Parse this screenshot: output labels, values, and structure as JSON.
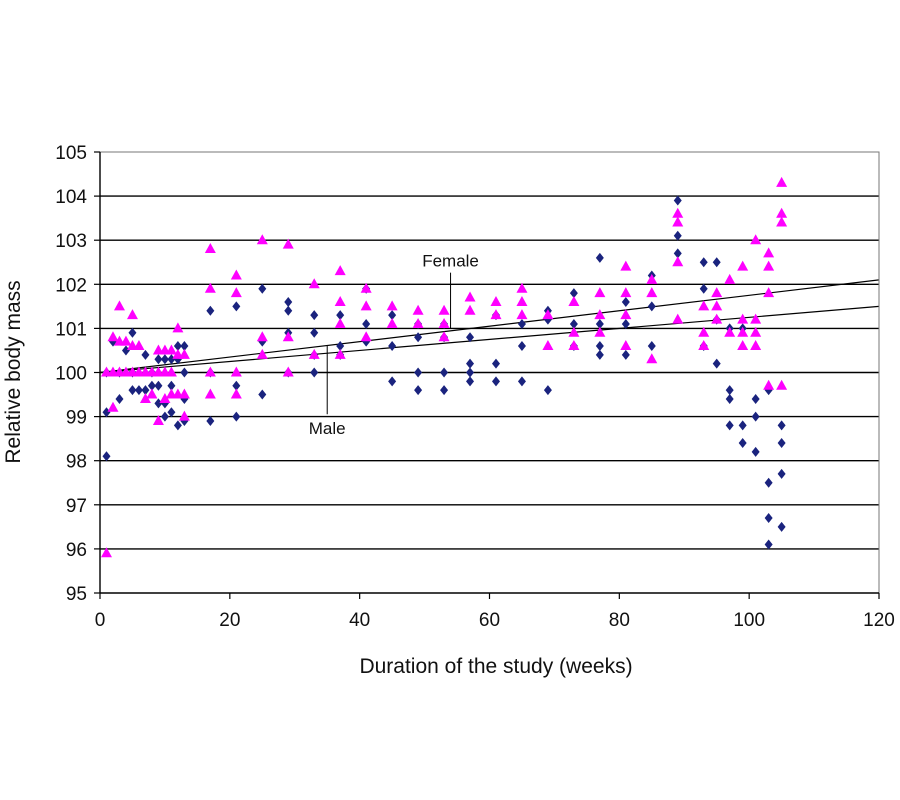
{
  "chart_data": {
    "type": "scatter",
    "xlabel": "Duration of the study (weeks)",
    "ylabel": "Relative body mass",
    "xlim": [
      0,
      120
    ],
    "ylim": [
      95,
      105
    ],
    "xticks": [
      0,
      20,
      40,
      60,
      80,
      100,
      120
    ],
    "yticks": [
      95,
      96,
      97,
      98,
      99,
      100,
      101,
      102,
      103,
      104,
      105
    ],
    "grid": "horizontal",
    "colors": {
      "male": "#1a237e",
      "female": "#ff00ff",
      "trend": "#000000"
    },
    "annotations": [
      {
        "text": "Female",
        "x": 54,
        "y": 102.4,
        "target_x": 54,
        "target_y": 101.0
      },
      {
        "text": "Male",
        "x": 35,
        "y": 98.6,
        "target_x": 35,
        "target_y": 100.6
      }
    ],
    "series": [
      {
        "marker": "diamond",
        "color": "#1a237e",
        "trend": {
          "x0": 0,
          "y0": 100.0,
          "x1": 120,
          "y1": 101.5
        },
        "points": [
          [
            1,
            98.1
          ],
          [
            1,
            99.1
          ],
          [
            1,
            100.0
          ],
          [
            2,
            100.7
          ],
          [
            3,
            99.4
          ],
          [
            3,
            100.0
          ],
          [
            4,
            100.5
          ],
          [
            5,
            99.6
          ],
          [
            5,
            100.9
          ],
          [
            5,
            100.0
          ],
          [
            6,
            99.6
          ],
          [
            7,
            99.6
          ],
          [
            7,
            100.4
          ],
          [
            8,
            99.7
          ],
          [
            8,
            100.0
          ],
          [
            9,
            99.3
          ],
          [
            9,
            99.7
          ],
          [
            9,
            100.3
          ],
          [
            10,
            99.3
          ],
          [
            10,
            99.0
          ],
          [
            10,
            100.3
          ],
          [
            11,
            99.1
          ],
          [
            11,
            99.7
          ],
          [
            11,
            100.3
          ],
          [
            12,
            98.8
          ],
          [
            12,
            100.3
          ],
          [
            12,
            100.6
          ],
          [
            13,
            98.9
          ],
          [
            13,
            99.4
          ],
          [
            13,
            100.0
          ],
          [
            13,
            100.6
          ],
          [
            17,
            98.9
          ],
          [
            17,
            100.0
          ],
          [
            17,
            101.4
          ],
          [
            21,
            99.0
          ],
          [
            21,
            99.7
          ],
          [
            21,
            101.5
          ],
          [
            25,
            99.5
          ],
          [
            25,
            100.7
          ],
          [
            25,
            101.9
          ],
          [
            29,
            100.0
          ],
          [
            29,
            100.9
          ],
          [
            29,
            101.4
          ],
          [
            29,
            101.6
          ],
          [
            33,
            100.0
          ],
          [
            33,
            100.4
          ],
          [
            33,
            100.9
          ],
          [
            33,
            101.3
          ],
          [
            37,
            100.4
          ],
          [
            37,
            100.6
          ],
          [
            37,
            101.3
          ],
          [
            41,
            100.7
          ],
          [
            41,
            101.1
          ],
          [
            41,
            101.9
          ],
          [
            45,
            99.8
          ],
          [
            45,
            100.6
          ],
          [
            45,
            101.3
          ],
          [
            49,
            99.6
          ],
          [
            49,
            100.0
          ],
          [
            49,
            100.8
          ],
          [
            49,
            101.1
          ],
          [
            53,
            99.6
          ],
          [
            53,
            100.0
          ],
          [
            53,
            100.8
          ],
          [
            53,
            101.1
          ],
          [
            57,
            99.8
          ],
          [
            57,
            100.0
          ],
          [
            57,
            100.2
          ],
          [
            57,
            100.8
          ],
          [
            61,
            99.8
          ],
          [
            61,
            100.2
          ],
          [
            61,
            101.3
          ],
          [
            65,
            99.8
          ],
          [
            65,
            100.6
          ],
          [
            65,
            101.1
          ],
          [
            69,
            99.6
          ],
          [
            69,
            101.2
          ],
          [
            69,
            101.4
          ],
          [
            73,
            100.6
          ],
          [
            73,
            101.1
          ],
          [
            73,
            101.8
          ],
          [
            77,
            100.4
          ],
          [
            77,
            100.6
          ],
          [
            77,
            101.1
          ],
          [
            77,
            102.6
          ],
          [
            81,
            100.4
          ],
          [
            81,
            101.1
          ],
          [
            81,
            101.6
          ],
          [
            85,
            100.6
          ],
          [
            85,
            101.5
          ],
          [
            85,
            102.2
          ],
          [
            89,
            102.7
          ],
          [
            89,
            103.1
          ],
          [
            89,
            103.9
          ],
          [
            93,
            100.6
          ],
          [
            93,
            101.9
          ],
          [
            93,
            102.5
          ],
          [
            95,
            100.2
          ],
          [
            95,
            101.2
          ],
          [
            95,
            102.5
          ],
          [
            97,
            98.8
          ],
          [
            97,
            99.4
          ],
          [
            97,
            99.6
          ],
          [
            97,
            101.0
          ],
          [
            99,
            98.4
          ],
          [
            99,
            98.8
          ],
          [
            99,
            101.0
          ],
          [
            101,
            98.2
          ],
          [
            101,
            99.0
          ],
          [
            101,
            99.4
          ],
          [
            103,
            96.1
          ],
          [
            103,
            96.7
          ],
          [
            103,
            97.5
          ],
          [
            103,
            99.6
          ],
          [
            105,
            96.5
          ],
          [
            105,
            97.7
          ],
          [
            105,
            98.4
          ],
          [
            105,
            98.8
          ]
        ]
      },
      {
        "marker": "triangle",
        "color": "#ff00ff",
        "trend": {
          "x0": 0,
          "y0": 100.0,
          "x1": 120,
          "y1": 102.1
        },
        "points": [
          [
            1,
            95.9
          ],
          [
            1,
            100.0
          ],
          [
            2,
            99.2
          ],
          [
            2,
            100.0
          ],
          [
            2,
            100.8
          ],
          [
            3,
            100.0
          ],
          [
            3,
            100.7
          ],
          [
            3,
            101.5
          ],
          [
            4,
            100.0
          ],
          [
            4,
            100.7
          ],
          [
            5,
            100.0
          ],
          [
            5,
            100.6
          ],
          [
            5,
            101.3
          ],
          [
            6,
            100.0
          ],
          [
            6,
            100.6
          ],
          [
            7,
            100.0
          ],
          [
            7,
            99.4
          ],
          [
            8,
            100.0
          ],
          [
            8,
            99.5
          ],
          [
            9,
            100.0
          ],
          [
            9,
            98.9
          ],
          [
            9,
            100.5
          ],
          [
            10,
            100.0
          ],
          [
            10,
            99.4
          ],
          [
            10,
            100.5
          ],
          [
            11,
            100.0
          ],
          [
            11,
            99.5
          ],
          [
            11,
            100.5
          ],
          [
            12,
            99.5
          ],
          [
            12,
            100.4
          ],
          [
            12,
            101.0
          ],
          [
            13,
            99.5
          ],
          [
            13,
            99.0
          ],
          [
            13,
            100.4
          ],
          [
            17,
            99.5
          ],
          [
            17,
            100.0
          ],
          [
            17,
            101.9
          ],
          [
            17,
            102.8
          ],
          [
            21,
            99.5
          ],
          [
            21,
            100.0
          ],
          [
            21,
            101.8
          ],
          [
            21,
            102.2
          ],
          [
            25,
            100.4
          ],
          [
            25,
            100.8
          ],
          [
            25,
            103.0
          ],
          [
            29,
            100.0
          ],
          [
            29,
            100.8
          ],
          [
            29,
            102.9
          ],
          [
            33,
            100.4
          ],
          [
            33,
            102.0
          ],
          [
            37,
            100.4
          ],
          [
            37,
            101.1
          ],
          [
            37,
            101.6
          ],
          [
            37,
            102.3
          ],
          [
            41,
            100.8
          ],
          [
            41,
            101.5
          ],
          [
            41,
            101.9
          ],
          [
            45,
            101.1
          ],
          [
            45,
            101.5
          ],
          [
            49,
            101.1
          ],
          [
            49,
            101.4
          ],
          [
            53,
            100.8
          ],
          [
            53,
            101.1
          ],
          [
            53,
            101.4
          ],
          [
            57,
            101.4
          ],
          [
            57,
            101.7
          ],
          [
            61,
            101.3
          ],
          [
            61,
            101.6
          ],
          [
            65,
            101.3
          ],
          [
            65,
            101.6
          ],
          [
            65,
            101.9
          ],
          [
            69,
            100.6
          ],
          [
            69,
            101.3
          ],
          [
            73,
            100.6
          ],
          [
            73,
            100.9
          ],
          [
            73,
            101.6
          ],
          [
            77,
            100.9
          ],
          [
            77,
            101.3
          ],
          [
            77,
            101.8
          ],
          [
            81,
            100.6
          ],
          [
            81,
            101.3
          ],
          [
            81,
            101.8
          ],
          [
            81,
            102.4
          ],
          [
            85,
            100.3
          ],
          [
            85,
            101.8
          ],
          [
            85,
            102.1
          ],
          [
            89,
            101.2
          ],
          [
            89,
            102.5
          ],
          [
            89,
            103.4
          ],
          [
            89,
            103.6
          ],
          [
            93,
            100.6
          ],
          [
            93,
            100.9
          ],
          [
            93,
            101.5
          ],
          [
            95,
            101.2
          ],
          [
            95,
            101.5
          ],
          [
            95,
            101.8
          ],
          [
            97,
            100.9
          ],
          [
            97,
            102.1
          ],
          [
            99,
            100.6
          ],
          [
            99,
            100.9
          ],
          [
            99,
            101.2
          ],
          [
            99,
            102.4
          ],
          [
            101,
            100.6
          ],
          [
            101,
            100.9
          ],
          [
            101,
            101.2
          ],
          [
            101,
            103.0
          ],
          [
            103,
            99.7
          ],
          [
            103,
            101.8
          ],
          [
            103,
            102.4
          ],
          [
            103,
            102.7
          ],
          [
            105,
            99.7
          ],
          [
            105,
            103.4
          ],
          [
            105,
            103.6
          ],
          [
            105,
            104.3
          ]
        ]
      }
    ]
  }
}
